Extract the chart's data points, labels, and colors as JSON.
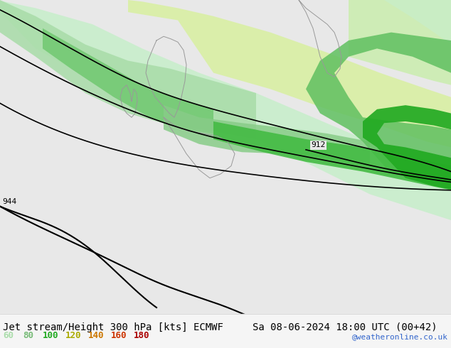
{
  "title_left": "Jet stream/Height 300 hPa [kts] ECMWF",
  "title_right": "Sa 08-06-2024 18:00 UTC (00+42)",
  "credit": "@weatheronline.co.uk",
  "legend_values": [
    60,
    80,
    100,
    120,
    140,
    160,
    180
  ],
  "legend_colors": [
    "#aaddaa",
    "#77cc77",
    "#33aa33",
    "#ffcc00",
    "#ff8800",
    "#ff4400",
    "#cc0000"
  ],
  "bg_color": "#e8e8e8",
  "map_bg": "#f0f0f0",
  "land_color": "#d8d8d8",
  "contour_label_912": "912",
  "contour_label_944a": "944",
  "contour_label_944b": "944",
  "font_size_title": 10,
  "font_size_legend": 9
}
